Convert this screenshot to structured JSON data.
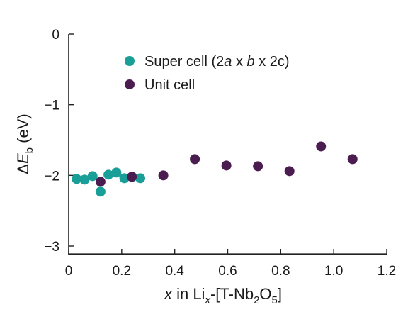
{
  "chart_data": {
    "type": "scatter",
    "xlabel": "x in Li_x-[T-Nb2O5]",
    "xlabel_parts": {
      "var": "x",
      "mid": " in Li",
      "sub1": "x",
      "pre": "-[T-Nb",
      "sub2": "2",
      "o": "O",
      "sub3": "5",
      "close": "]"
    },
    "ylabel": "ΔE_b (eV)",
    "ylabel_parts": {
      "delta": "Δ",
      "e": "E",
      "sub": "b",
      "unit": " (eV)"
    },
    "xlim": [
      0,
      1.2
    ],
    "ylim": [
      -3,
      0
    ],
    "xticks": [
      0,
      0.2,
      0.4,
      0.6,
      0.8,
      1.0,
      1.2
    ],
    "xtick_labels": [
      "0",
      "0.2",
      "0.4",
      "0.6",
      "0.8",
      "1.0",
      "1.2"
    ],
    "yticks": [
      0,
      -1,
      -2,
      -3
    ],
    "ytick_labels": [
      "0",
      "−1",
      "−2",
      "−3"
    ],
    "grid": false,
    "legend_position": "top-center",
    "series": [
      {
        "name": "Super cell (2a x b x 2c)",
        "name_parts": [
          "Super cell (2",
          "a",
          " x ",
          "b",
          " x 2c)"
        ],
        "color": "#1a9e98",
        "points": [
          [
            0.03,
            -2.05
          ],
          [
            0.06,
            -2.06
          ],
          [
            0.09,
            -2.01
          ],
          [
            0.12,
            -2.23
          ],
          [
            0.15,
            -1.99
          ],
          [
            0.18,
            -1.96
          ],
          [
            0.21,
            -2.04
          ],
          [
            0.24,
            -2.02
          ],
          [
            0.27,
            -2.04
          ]
        ]
      },
      {
        "name": "Unit cell",
        "name_parts": [
          "Unit cell"
        ],
        "color": "#4b1c4f",
        "points": [
          [
            0.12,
            -2.09
          ],
          [
            0.238,
            -2.02
          ],
          [
            0.357,
            -2.0
          ],
          [
            0.476,
            -1.77
          ],
          [
            0.595,
            -1.86
          ],
          [
            0.714,
            -1.87
          ],
          [
            0.833,
            -1.94
          ],
          [
            0.952,
            -1.59
          ],
          [
            1.071,
            -1.77
          ]
        ]
      }
    ]
  }
}
